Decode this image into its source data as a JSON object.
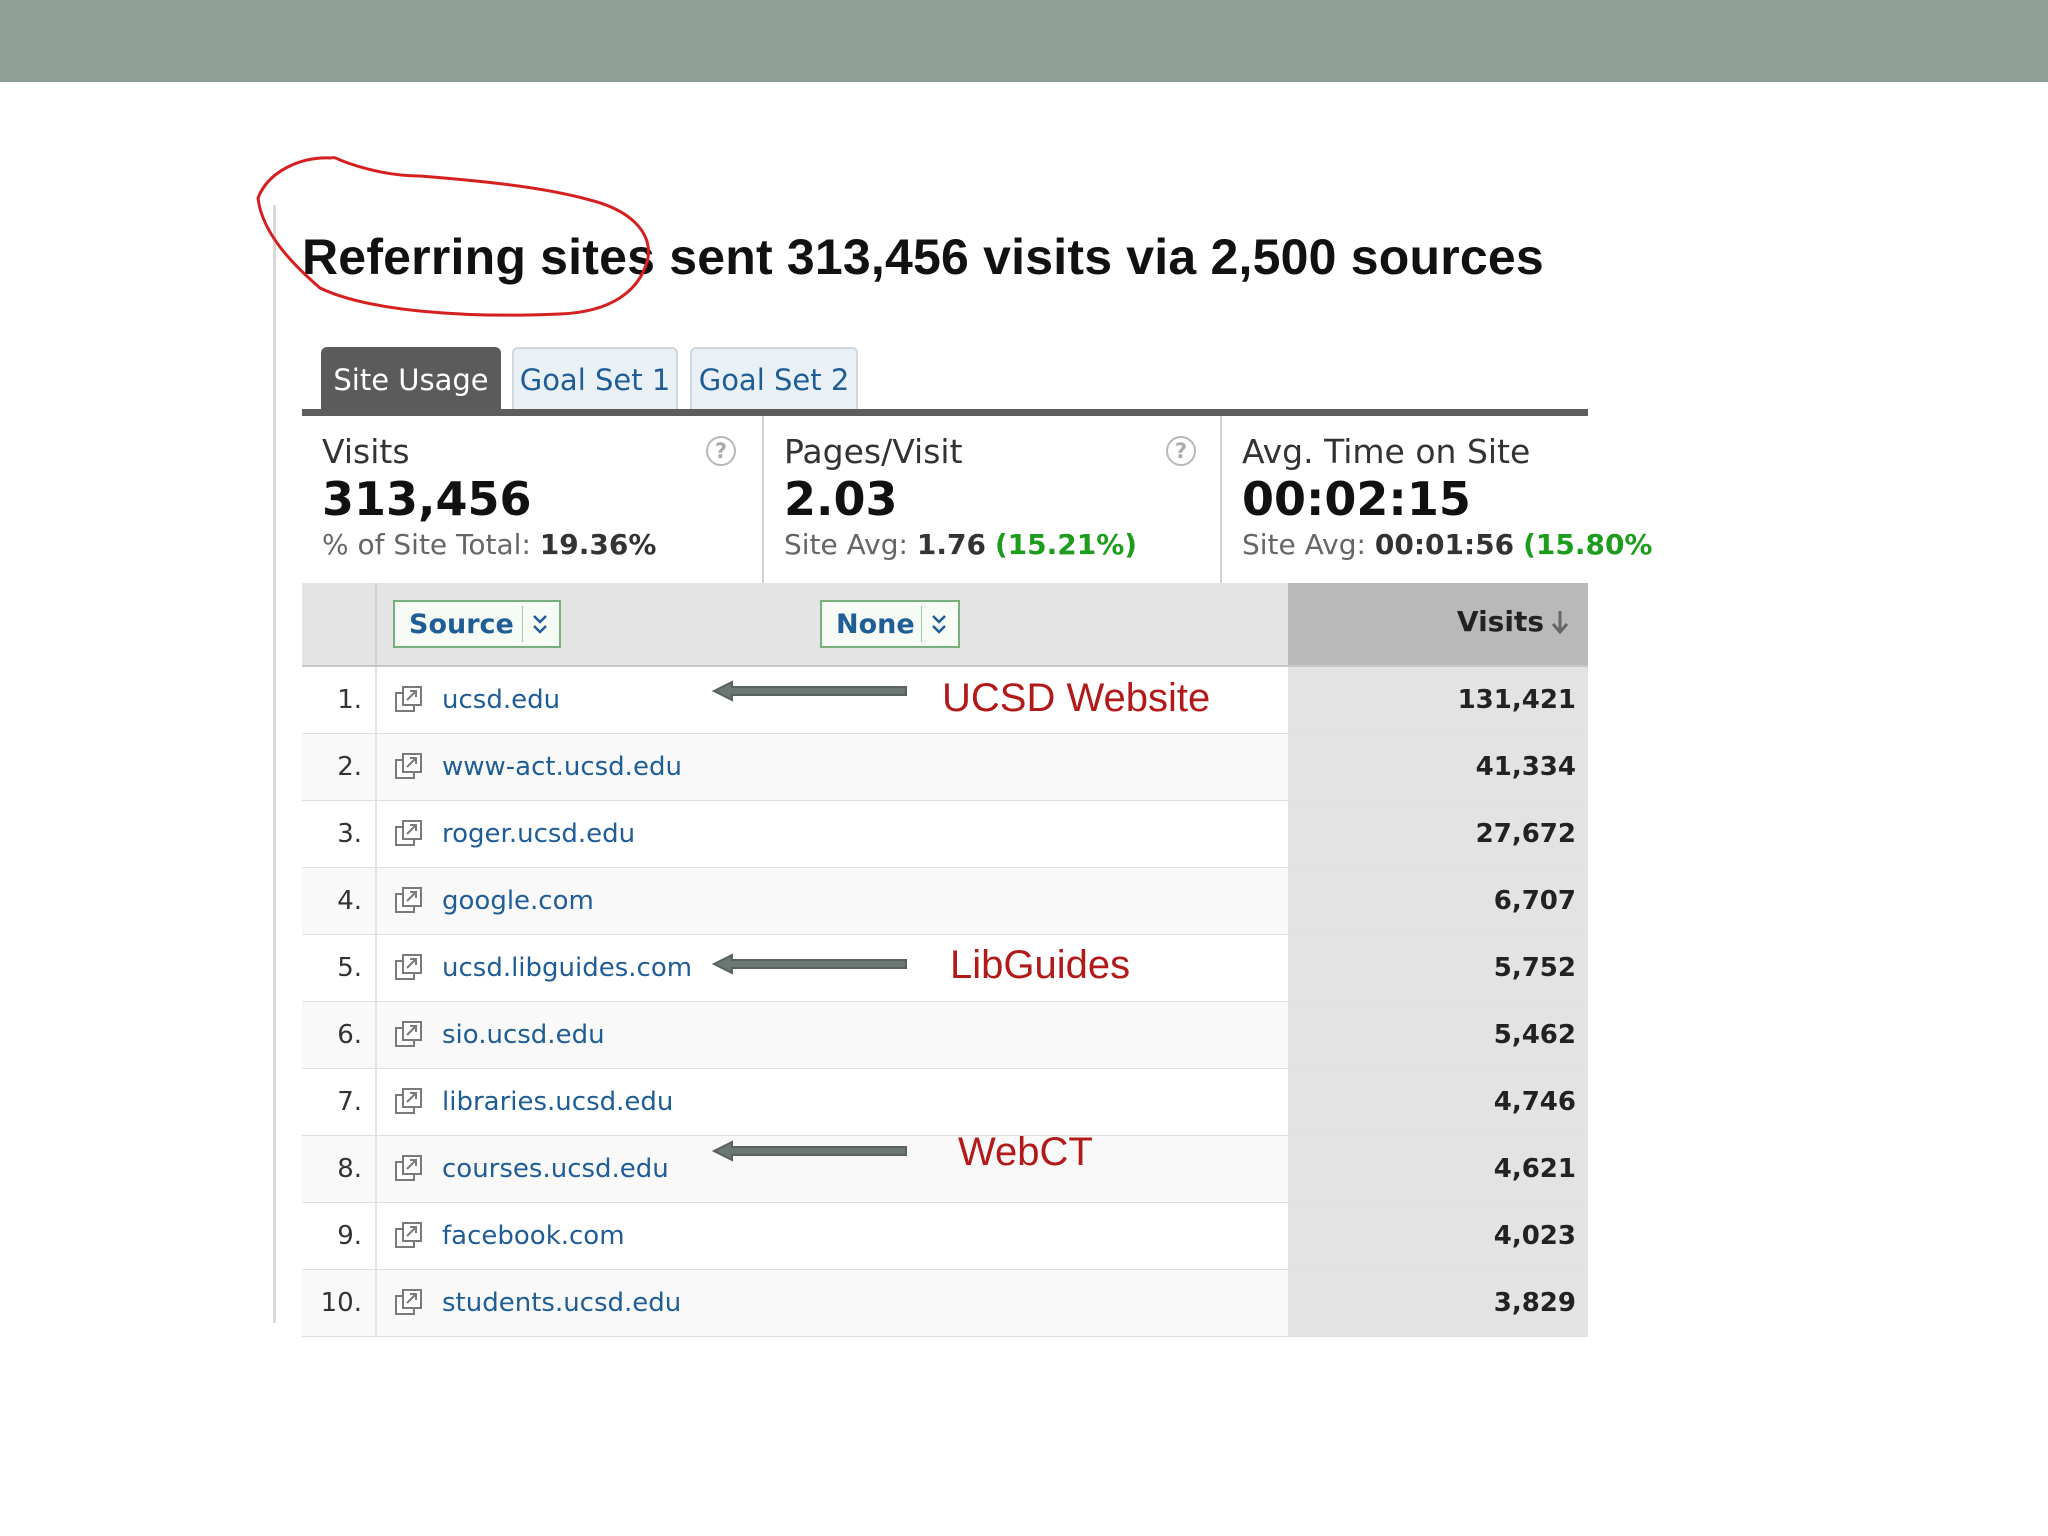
{
  "headline": "Referring sites sent 313,456 visits via 2,500 sources",
  "tabs": [
    {
      "label": "Site Usage",
      "active": true
    },
    {
      "label": "Goal Set 1",
      "active": false
    },
    {
      "label": "Goal Set 2",
      "active": false
    }
  ],
  "metrics": {
    "visits": {
      "label": "Visits",
      "value": "313,456",
      "sub_label": "% of Site Total:",
      "sub_value": "19.36%",
      "help": "?"
    },
    "pages": {
      "label": "Pages/Visit",
      "value": "2.03",
      "sub_label": "Site Avg:",
      "sub_value": "1.76",
      "sub_pct": "(15.21%)",
      "help": "?"
    },
    "time": {
      "label": "Avg. Time on Site",
      "value": "00:02:15",
      "sub_label": "Site Avg:",
      "sub_value": "00:01:56",
      "sub_pct": "(15.80%"
    }
  },
  "table": {
    "dimension_dropdown": "Source",
    "secondary_dropdown": "None",
    "visits_header": "Visits",
    "rows": [
      {
        "num": "1.",
        "source": "ucsd.edu",
        "visits": "131,421"
      },
      {
        "num": "2.",
        "source": "www-act.ucsd.edu",
        "visits": "41,334"
      },
      {
        "num": "3.",
        "source": "roger.ucsd.edu",
        "visits": "27,672"
      },
      {
        "num": "4.",
        "source": "google.com",
        "visits": "6,707"
      },
      {
        "num": "5.",
        "source": "ucsd.libguides.com",
        "visits": "5,752"
      },
      {
        "num": "6.",
        "source": "sio.ucsd.edu",
        "visits": "5,462"
      },
      {
        "num": "7.",
        "source": "libraries.ucsd.edu",
        "visits": "4,746"
      },
      {
        "num": "8.",
        "source": "courses.ucsd.edu",
        "visits": "4,621"
      },
      {
        "num": "9.",
        "source": "facebook.com",
        "visits": "4,023"
      },
      {
        "num": "10.",
        "source": "students.ucsd.edu",
        "visits": "3,829"
      }
    ]
  },
  "annotations": {
    "ucsd": "UCSD Website",
    "libguides": "LibGuides",
    "webct": "WebCT"
  },
  "colors": {
    "annotation": "#b21a1a",
    "circle": "#d61f1f",
    "link": "#1f5d96",
    "positive_pct": "#1e9c1e",
    "top_bar": "#919f99"
  }
}
